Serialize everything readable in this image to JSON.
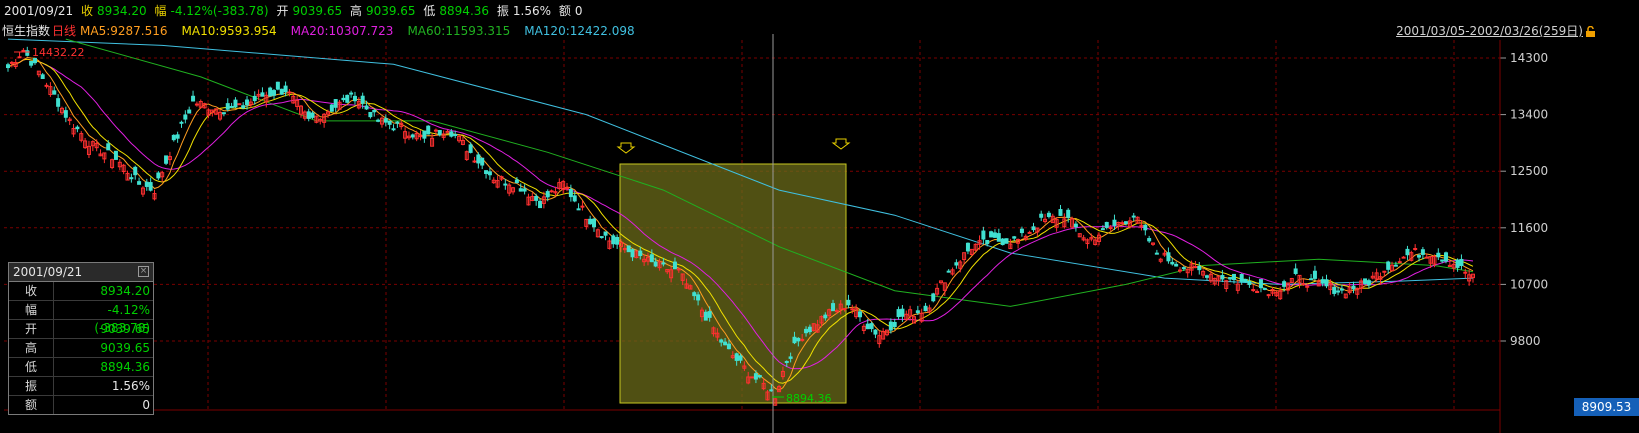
{
  "topbar": {
    "date": "2001/09/21",
    "close_label": "收",
    "close": "8934.20",
    "change_label": "幅",
    "change": "-4.12%(-383.78)",
    "open_label": "开",
    "open": "9039.65",
    "high_label": "高",
    "high": "9039.65",
    "low_label": "低",
    "low": "8894.36",
    "amp_label": "振",
    "amp": "1.56%",
    "vol_label": "额",
    "vol": "0"
  },
  "ma_bar": {
    "name": "恒生指数",
    "period": "日线",
    "ma5": "MA5:9287.516",
    "ma10": "MA10:9593.954",
    "ma20": "MA20:10307.723",
    "ma60": "MA60:11593.315",
    "ma120": "MA120:12422.098",
    "range": "2001/03/05-2002/03/26(259日)"
  },
  "info_panel": {
    "date": "2001/09/21",
    "rows": [
      {
        "k": "收",
        "v": "8934.20",
        "color": "#00d000"
      },
      {
        "k": "幅",
        "v": "-4.12%(-383.78)",
        "color": "#00d000"
      },
      {
        "k": "开",
        "v": "9039.65",
        "color": "#00d000"
      },
      {
        "k": "高",
        "v": "9039.65",
        "color": "#00d000"
      },
      {
        "k": "低",
        "v": "8894.36",
        "color": "#00d000"
      },
      {
        "k": "振",
        "v": "1.56%",
        "color": "#e6e6e6"
      },
      {
        "k": "额",
        "v": "0",
        "color": "#e6e6e6"
      }
    ]
  },
  "price_label": "8909.53",
  "colors": {
    "up": "#ff3030",
    "down": "#40e0d0",
    "ma5": "#ff9e20",
    "ma10": "#f0e000",
    "ma20": "#e020e0",
    "ma60": "#20b020",
    "ma120": "#40c0e0",
    "grid": "#7a0000",
    "highlight": "#6b6b1a"
  },
  "chart_data": {
    "type": "candlestick",
    "title": "恒生指数 日线",
    "y_ticks": [
      14300,
      13400,
      12500,
      11600,
      10700,
      9800
    ],
    "ylim": [
      8900,
      14600
    ],
    "annotations": {
      "max": "14432.22",
      "min": "8894.36"
    },
    "anchors": [
      {
        "i": 0,
        "c": 14150
      },
      {
        "i": 4,
        "c": 14430
      },
      {
        "i": 10,
        "c": 13900
      },
      {
        "i": 16,
        "c": 13300
      },
      {
        "i": 22,
        "c": 12900
      },
      {
        "i": 28,
        "c": 12700
      },
      {
        "i": 34,
        "c": 12300
      },
      {
        "i": 38,
        "c": 12200
      },
      {
        "i": 42,
        "c": 12800
      },
      {
        "i": 48,
        "c": 13600
      },
      {
        "i": 54,
        "c": 13500
      },
      {
        "i": 60,
        "c": 13500
      },
      {
        "i": 66,
        "c": 13700
      },
      {
        "i": 72,
        "c": 13800
      },
      {
        "i": 78,
        "c": 13300
      },
      {
        "i": 84,
        "c": 13500
      },
      {
        "i": 90,
        "c": 13700
      },
      {
        "i": 96,
        "c": 13300
      },
      {
        "i": 102,
        "c": 13200
      },
      {
        "i": 108,
        "c": 13000
      },
      {
        "i": 114,
        "c": 13200
      },
      {
        "i": 120,
        "c": 12800
      },
      {
        "i": 126,
        "c": 12400
      },
      {
        "i": 132,
        "c": 12300
      },
      {
        "i": 138,
        "c": 12000
      },
      {
        "i": 144,
        "c": 12300
      },
      {
        "i": 150,
        "c": 11800
      },
      {
        "i": 156,
        "c": 11400
      },
      {
        "i": 162,
        "c": 11200
      },
      {
        "i": 168,
        "c": 11000
      },
      {
        "i": 174,
        "c": 10900
      },
      {
        "i": 180,
        "c": 10300
      },
      {
        "i": 186,
        "c": 9700
      },
      {
        "i": 192,
        "c": 9300
      },
      {
        "i": 196,
        "c": 9100
      },
      {
        "i": 199,
        "c": 8934
      },
      {
        "i": 202,
        "c": 9500
      },
      {
        "i": 206,
        "c": 9900
      },
      {
        "i": 212,
        "c": 10200
      },
      {
        "i": 218,
        "c": 10400
      },
      {
        "i": 222,
        "c": 10100
      },
      {
        "i": 226,
        "c": 9900
      },
      {
        "i": 232,
        "c": 10200
      },
      {
        "i": 238,
        "c": 10300
      },
      {
        "i": 244,
        "c": 10900
      },
      {
        "i": 250,
        "c": 11300
      },
      {
        "i": 256,
        "c": 11400
      },
      {
        "i": 262,
        "c": 11400
      },
      {
        "i": 268,
        "c": 11700
      },
      {
        "i": 274,
        "c": 11800
      },
      {
        "i": 280,
        "c": 11400
      },
      {
        "i": 286,
        "c": 11600
      },
      {
        "i": 292,
        "c": 11800
      },
      {
        "i": 298,
        "c": 11200
      },
      {
        "i": 304,
        "c": 11000
      },
      {
        "i": 310,
        "c": 10900
      },
      {
        "i": 316,
        "c": 10800
      },
      {
        "i": 322,
        "c": 10700
      },
      {
        "i": 328,
        "c": 10600
      },
      {
        "i": 334,
        "c": 10800
      },
      {
        "i": 340,
        "c": 10700
      },
      {
        "i": 346,
        "c": 10600
      },
      {
        "i": 352,
        "c": 10700
      },
      {
        "i": 358,
        "c": 11000
      },
      {
        "i": 364,
        "c": 11200
      },
      {
        "i": 370,
        "c": 11200
      },
      {
        "i": 376,
        "c": 11000
      },
      {
        "i": 380,
        "c": 10800
      }
    ],
    "ma_points": {
      "ma120": [
        [
          0,
          14600
        ],
        [
          40,
          14500
        ],
        [
          100,
          14200
        ],
        [
          150,
          13400
        ],
        [
          200,
          12200
        ],
        [
          230,
          11800
        ],
        [
          260,
          11200
        ],
        [
          300,
          10800
        ],
        [
          330,
          10700
        ],
        [
          360,
          10750
        ],
        [
          380,
          10800
        ]
      ],
      "ma60": [
        [
          15,
          14600
        ],
        [
          50,
          14000
        ],
        [
          80,
          13300
        ],
        [
          110,
          13300
        ],
        [
          140,
          12800
        ],
        [
          170,
          12200
        ],
        [
          200,
          11300
        ],
        [
          230,
          10600
        ],
        [
          260,
          10350
        ],
        [
          290,
          10700
        ],
        [
          310,
          11000
        ],
        [
          340,
          11100
        ],
        [
          370,
          11000
        ],
        [
          380,
          10900
        ]
      ]
    }
  }
}
